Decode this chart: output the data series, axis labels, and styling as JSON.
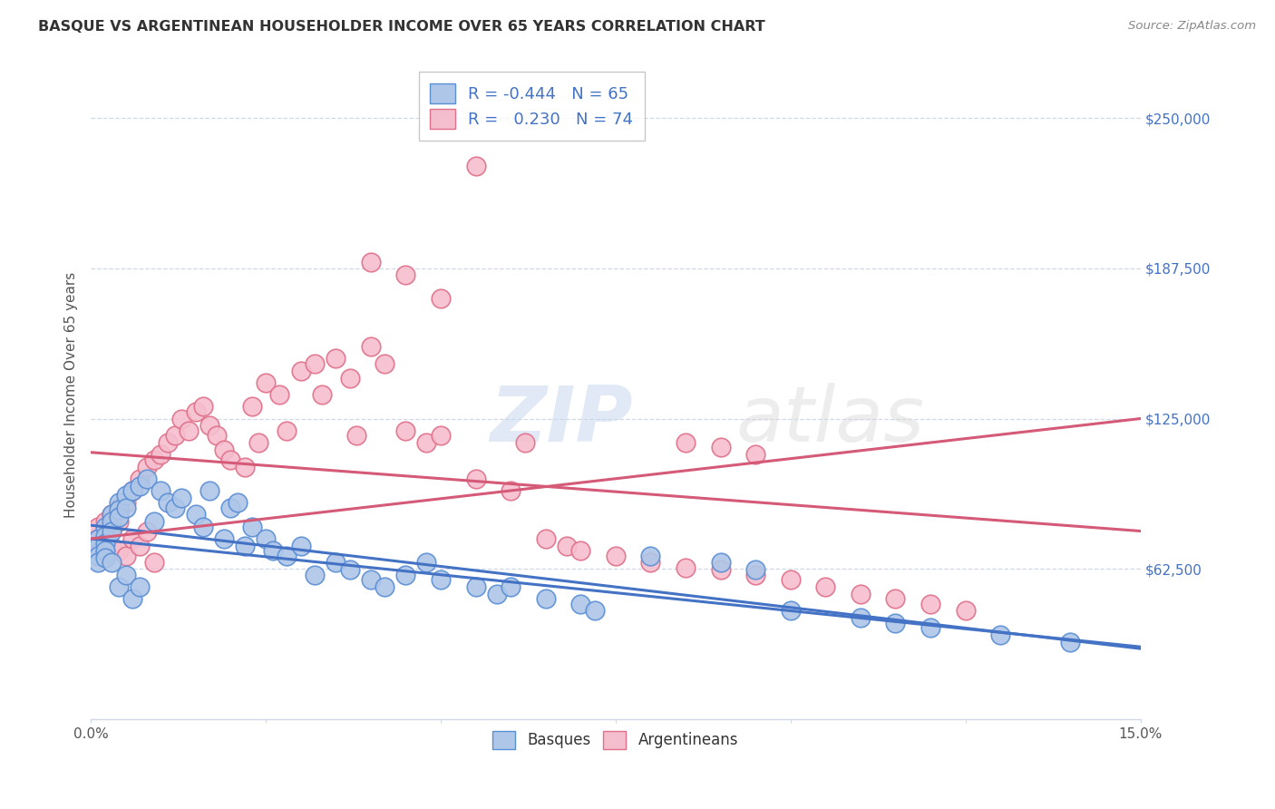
{
  "title": "BASQUE VS ARGENTINEAN HOUSEHOLDER INCOME OVER 65 YEARS CORRELATION CHART",
  "source": "Source: ZipAtlas.com",
  "ylabel_label": "Householder Income Over 65 years",
  "ytick_labels": [
    "$62,500",
    "$125,000",
    "$187,500",
    "$250,000"
  ],
  "ytick_values": [
    62500,
    125000,
    187500,
    250000
  ],
  "xlim": [
    0.0,
    0.15
  ],
  "ylim": [
    0,
    270000
  ],
  "watermark_zip": "ZIP",
  "watermark_atlas": "atlas",
  "legend": {
    "basque_R": "-0.444",
    "basque_N": "65",
    "arg_R": "0.230",
    "arg_N": "74"
  },
  "basque_color": "#aec6e8",
  "basque_edge_color": "#5b8fd4",
  "basque_line_color": "#4472c4",
  "arg_color": "#f5bece",
  "arg_edge_color": "#e0708a",
  "arg_line_color": "#d45a78",
  "grid_color": "#d0d8e8",
  "spine_color": "#d0d8e8",
  "title_color": "#333333",
  "source_color": "#888888",
  "tick_color": "#4472c4",
  "basque_x": [
    0.001,
    0.001,
    0.001,
    0.001,
    0.002,
    0.002,
    0.002,
    0.002,
    0.002,
    0.003,
    0.003,
    0.003,
    0.003,
    0.004,
    0.004,
    0.004,
    0.004,
    0.005,
    0.005,
    0.005,
    0.006,
    0.006,
    0.007,
    0.007,
    0.008,
    0.009,
    0.01,
    0.011,
    0.012,
    0.013,
    0.015,
    0.016,
    0.017,
    0.019,
    0.02,
    0.021,
    0.022,
    0.023,
    0.025,
    0.026,
    0.028,
    0.03,
    0.032,
    0.035,
    0.037,
    0.04,
    0.042,
    0.045,
    0.048,
    0.05,
    0.055,
    0.058,
    0.06,
    0.065,
    0.07,
    0.072,
    0.08,
    0.09,
    0.095,
    0.1,
    0.11,
    0.115,
    0.12,
    0.13,
    0.14
  ],
  "basque_y": [
    75000,
    72000,
    68000,
    65000,
    80000,
    76000,
    73000,
    70000,
    67000,
    85000,
    82000,
    78000,
    65000,
    90000,
    87000,
    84000,
    55000,
    93000,
    88000,
    60000,
    95000,
    50000,
    97000,
    55000,
    100000,
    82000,
    95000,
    90000,
    88000,
    92000,
    85000,
    80000,
    95000,
    75000,
    88000,
    90000,
    72000,
    80000,
    75000,
    70000,
    68000,
    72000,
    60000,
    65000,
    62000,
    58000,
    55000,
    60000,
    65000,
    58000,
    55000,
    52000,
    55000,
    50000,
    48000,
    45000,
    68000,
    65000,
    62000,
    45000,
    42000,
    40000,
    38000,
    35000,
    32000
  ],
  "arg_x": [
    0.001,
    0.001,
    0.001,
    0.002,
    0.002,
    0.002,
    0.003,
    0.003,
    0.003,
    0.004,
    0.004,
    0.004,
    0.005,
    0.005,
    0.006,
    0.006,
    0.007,
    0.007,
    0.008,
    0.008,
    0.009,
    0.009,
    0.01,
    0.011,
    0.012,
    0.013,
    0.014,
    0.015,
    0.016,
    0.017,
    0.018,
    0.019,
    0.02,
    0.022,
    0.023,
    0.024,
    0.025,
    0.027,
    0.028,
    0.03,
    0.032,
    0.033,
    0.035,
    0.037,
    0.038,
    0.04,
    0.042,
    0.045,
    0.048,
    0.05,
    0.055,
    0.06,
    0.062,
    0.065,
    0.068,
    0.07,
    0.075,
    0.08,
    0.085,
    0.09,
    0.095,
    0.1,
    0.105,
    0.11,
    0.115,
    0.12,
    0.125,
    0.085,
    0.09,
    0.095,
    0.04,
    0.045,
    0.05,
    0.055
  ],
  "arg_y": [
    80000,
    75000,
    70000,
    82000,
    78000,
    68000,
    85000,
    80000,
    72000,
    88000,
    82000,
    70000,
    90000,
    68000,
    95000,
    75000,
    100000,
    72000,
    105000,
    78000,
    108000,
    65000,
    110000,
    115000,
    118000,
    125000,
    120000,
    128000,
    130000,
    122000,
    118000,
    112000,
    108000,
    105000,
    130000,
    115000,
    140000,
    135000,
    120000,
    145000,
    148000,
    135000,
    150000,
    142000,
    118000,
    155000,
    148000,
    120000,
    115000,
    118000,
    100000,
    95000,
    115000,
    75000,
    72000,
    70000,
    68000,
    65000,
    63000,
    62000,
    60000,
    58000,
    55000,
    52000,
    50000,
    48000,
    45000,
    115000,
    113000,
    110000,
    190000,
    185000,
    175000,
    230000
  ]
}
